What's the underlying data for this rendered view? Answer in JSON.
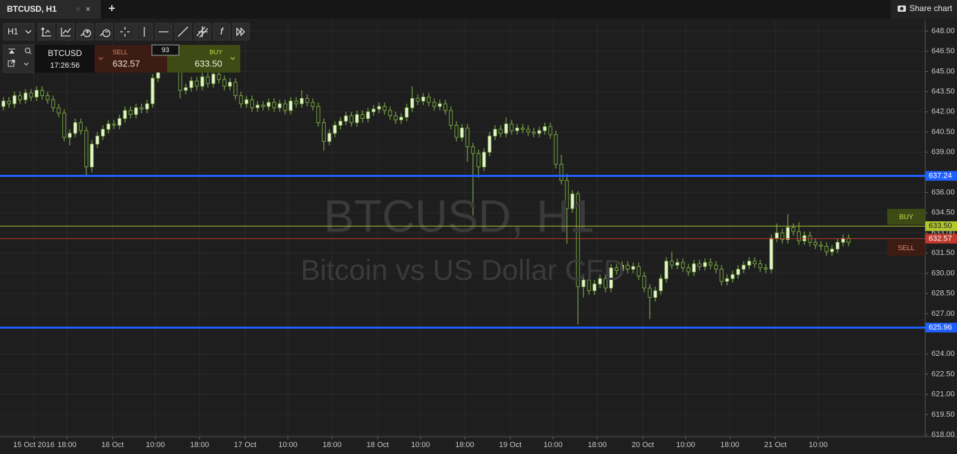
{
  "tab": {
    "share": "Share chart"
  },
  "toolbar": {
    "interval": "H1"
  },
  "quote": {
    "symbol": "BTCUSD",
    "time": "17:26:56",
    "spread": 93
  },
  "chart_data": {
    "type": "candlestick",
    "title": "BTCUSD, H1",
    "subtitle": "Bitcoin vs US Dollar CFD",
    "up_color": "#e8f3d8",
    "down_color": "#1e1e1e",
    "wick_color": "#8bc34a",
    "grid": true,
    "xlim": [
      -0.625,
      166.875
    ],
    "ylim": [
      617.85,
      648.77
    ],
    "xticks": [
      {
        "value": 5.5,
        "label": "15 Oct 2016"
      },
      {
        "value": 11.5,
        "label": "18:00"
      },
      {
        "value": 19.75,
        "label": "16 Oct"
      },
      {
        "value": 27.5,
        "label": "10:00"
      },
      {
        "value": 35.5,
        "label": "18:00"
      },
      {
        "value": 43.75,
        "label": "17 Oct"
      },
      {
        "value": 51.5,
        "label": "10:00"
      },
      {
        "value": 59.5,
        "label": "18:00"
      },
      {
        "value": 67.75,
        "label": "18 Oct"
      },
      {
        "value": 75.5,
        "label": "10:00"
      },
      {
        "value": 83.5,
        "label": "18:00"
      },
      {
        "value": 91.75,
        "label": "19 Oct"
      },
      {
        "value": 99.5,
        "label": "10:00"
      },
      {
        "value": 107.5,
        "label": "18:00"
      },
      {
        "value": 115.75,
        "label": "20 Oct"
      },
      {
        "value": 123.5,
        "label": "10:00"
      },
      {
        "value": 131.5,
        "label": "18:00"
      },
      {
        "value": 139.75,
        "label": "21 Oct"
      },
      {
        "value": 147.5,
        "label": "10:00"
      }
    ],
    "yticks": [
      {
        "value": 618,
        "label": "618.00"
      },
      {
        "value": 619.5,
        "label": "619.50"
      },
      {
        "value": 621,
        "label": "621.00"
      },
      {
        "value": 622.5,
        "label": "622.50"
      },
      {
        "value": 624,
        "label": "624.00"
      },
      {
        "value": 627,
        "label": "627.00"
      },
      {
        "value": 628.5,
        "label": "628.50"
      },
      {
        "value": 630,
        "label": "630.00"
      },
      {
        "value": 631.5,
        "label": "631.50"
      },
      {
        "value": 633,
        "label": "633.00"
      },
      {
        "value": 634.5,
        "label": "634.50"
      },
      {
        "value": 636,
        "label": "636.00"
      },
      {
        "value": 639,
        "label": "639.00"
      },
      {
        "value": 640.5,
        "label": "640.50"
      },
      {
        "value": 642,
        "label": "642.00"
      },
      {
        "value": 643.5,
        "label": "643.50"
      },
      {
        "value": 645,
        "label": "645.00"
      },
      {
        "value": 646.5,
        "label": "646.50"
      },
      {
        "value": 648,
        "label": "648.00"
      }
    ],
    "levels": [
      {
        "value": 637.24,
        "label": "637.24",
        "color": "#1f5fff"
      },
      {
        "value": 625.96,
        "label": "625.96",
        "color": "#1f5fff"
      }
    ],
    "bid": {
      "name": "SELL",
      "value": 632.57,
      "label": "632.57",
      "color": "#c0392b"
    },
    "ask": {
      "name": "BUY",
      "value": 633.5,
      "label": "633.50",
      "color": "#b3c72f"
    },
    "ohlc": [
      [
        642.4,
        643.1,
        642.1,
        642.8
      ],
      [
        642.8,
        643.1,
        642.3,
        642.6
      ],
      [
        642.6,
        643.5,
        642.3,
        643.2
      ],
      [
        643.2,
        643.5,
        642.6,
        642.9
      ],
      [
        642.9,
        643.7,
        642.6,
        643.4
      ],
      [
        643.4,
        643.7,
        642.8,
        643.1
      ],
      [
        643.1,
        643.9,
        642.8,
        643.6
      ],
      [
        643.6,
        643.9,
        642.9,
        643.2
      ],
      [
        643.2,
        643.5,
        642.6,
        642.9
      ],
      [
        642.9,
        643.2,
        642.0,
        642.3
      ],
      [
        642.3,
        642.6,
        641.6,
        641.9
      ],
      [
        641.9,
        642.2,
        639.8,
        640.1
      ],
      [
        640.1,
        640.7,
        639.5,
        640.4
      ],
      [
        640.4,
        641.5,
        640.1,
        641.2
      ],
      [
        641.2,
        641.5,
        640.3,
        640.6
      ],
      [
        640.6,
        640.9,
        637.3,
        637.9
      ],
      [
        637.9,
        639.9,
        637.5,
        639.6
      ],
      [
        639.6,
        640.5,
        639.3,
        640.2
      ],
      [
        640.2,
        641.0,
        639.9,
        640.7
      ],
      [
        640.7,
        641.4,
        640.4,
        641.1
      ],
      [
        641.1,
        641.4,
        640.7,
        641.0
      ],
      [
        641.0,
        641.8,
        640.7,
        641.5
      ],
      [
        641.5,
        642.4,
        641.2,
        642.1
      ],
      [
        642.1,
        642.4,
        641.5,
        641.8
      ],
      [
        641.8,
        642.6,
        641.5,
        642.3
      ],
      [
        642.3,
        642.6,
        641.9,
        642.2
      ],
      [
        642.2,
        642.9,
        641.9,
        642.6
      ],
      [
        642.6,
        644.8,
        642.3,
        644.5
      ],
      [
        644.5,
        645.5,
        644.2,
        645.2
      ],
      [
        645.2,
        646.0,
        644.9,
        645.7
      ],
      [
        645.7,
        646.0,
        645.1,
        645.4
      ],
      [
        645.4,
        646.3,
        645.1,
        646.0
      ],
      [
        646.0,
        646.3,
        643.0,
        643.6
      ],
      [
        643.6,
        644.1,
        643.3,
        643.8
      ],
      [
        643.8,
        644.6,
        643.5,
        644.3
      ],
      [
        644.3,
        644.6,
        643.6,
        643.9
      ],
      [
        643.9,
        644.9,
        643.6,
        644.6
      ],
      [
        644.6,
        644.9,
        643.8,
        644.1
      ],
      [
        644.1,
        645.1,
        643.8,
        644.8
      ],
      [
        644.8,
        645.1,
        644.1,
        644.4
      ],
      [
        644.4,
        644.7,
        643.6,
        643.9
      ],
      [
        643.9,
        644.5,
        643.6,
        644.2
      ],
      [
        644.2,
        644.5,
        642.9,
        643.2
      ],
      [
        643.2,
        643.5,
        642.3,
        642.6
      ],
      [
        642.6,
        643.2,
        642.3,
        642.9
      ],
      [
        642.9,
        643.2,
        642.0,
        642.3
      ],
      [
        642.3,
        642.8,
        642.0,
        642.5
      ],
      [
        642.5,
        642.8,
        642.1,
        642.4
      ],
      [
        642.4,
        643.0,
        642.1,
        642.7
      ],
      [
        642.7,
        643.0,
        642.0,
        642.3
      ],
      [
        642.3,
        642.9,
        642.0,
        642.6
      ],
      [
        642.6,
        642.9,
        641.8,
        642.1
      ],
      [
        642.1,
        643.1,
        641.8,
        642.8
      ],
      [
        642.8,
        643.1,
        642.3,
        642.6
      ],
      [
        642.6,
        643.6,
        642.3,
        643.0
      ],
      [
        643.0,
        643.3,
        642.4,
        642.7
      ],
      [
        642.7,
        643.0,
        642.1,
        642.4
      ],
      [
        642.4,
        642.7,
        640.9,
        641.2
      ],
      [
        641.2,
        641.5,
        639.1,
        639.8
      ],
      [
        639.8,
        640.7,
        639.5,
        640.4
      ],
      [
        640.4,
        641.3,
        640.1,
        641.0
      ],
      [
        641.0,
        641.6,
        640.7,
        641.3
      ],
      [
        641.3,
        642.0,
        641.0,
        641.7
      ],
      [
        641.7,
        642.0,
        640.9,
        641.2
      ],
      [
        641.2,
        642.1,
        640.9,
        641.8
      ],
      [
        641.8,
        642.1,
        641.2,
        641.5
      ],
      [
        641.5,
        642.3,
        641.2,
        642.0
      ],
      [
        642.0,
        642.5,
        641.7,
        642.2
      ],
      [
        642.2,
        642.7,
        641.9,
        642.4
      ],
      [
        642.4,
        642.7,
        641.8,
        642.1
      ],
      [
        642.1,
        642.4,
        641.4,
        641.7
      ],
      [
        641.7,
        642.0,
        641.1,
        641.4
      ],
      [
        641.4,
        641.9,
        641.1,
        641.6
      ],
      [
        641.6,
        642.6,
        641.3,
        642.3
      ],
      [
        642.3,
        643.9,
        642.0,
        643.0
      ],
      [
        643.0,
        643.3,
        642.5,
        642.8
      ],
      [
        642.8,
        643.4,
        642.5,
        643.1
      ],
      [
        643.1,
        643.4,
        642.4,
        642.7
      ],
      [
        642.7,
        643.0,
        642.1,
        642.4
      ],
      [
        642.4,
        642.9,
        642.1,
        642.6
      ],
      [
        642.6,
        642.9,
        641.8,
        642.1
      ],
      [
        642.1,
        642.4,
        640.7,
        641.0
      ],
      [
        641.0,
        641.3,
        639.8,
        640.1
      ],
      [
        640.1,
        641.1,
        639.8,
        640.8
      ],
      [
        640.8,
        641.1,
        638.3,
        639.4
      ],
      [
        639.4,
        639.7,
        634.3,
        638.9
      ],
      [
        638.9,
        639.2,
        637.1,
        637.9
      ],
      [
        637.9,
        639.3,
        637.6,
        639.0
      ],
      [
        639.0,
        640.5,
        638.7,
        640.2
      ],
      [
        640.2,
        641.0,
        639.9,
        640.7
      ],
      [
        640.7,
        641.0,
        640.1,
        640.4
      ],
      [
        640.4,
        641.6,
        640.1,
        641.1
      ],
      [
        641.1,
        641.4,
        640.3,
        640.6
      ],
      [
        640.6,
        641.1,
        640.3,
        640.8
      ],
      [
        640.8,
        641.1,
        640.4,
        640.7
      ],
      [
        640.7,
        641.0,
        640.2,
        640.5
      ],
      [
        640.5,
        640.8,
        640.1,
        640.4
      ],
      [
        640.4,
        640.9,
        640.1,
        640.6
      ],
      [
        640.6,
        641.2,
        640.3,
        640.9
      ],
      [
        640.9,
        641.2,
        640.0,
        640.3
      ],
      [
        640.3,
        640.6,
        637.8,
        638.1
      ],
      [
        638.1,
        638.8,
        636.6,
        636.9
      ],
      [
        636.9,
        637.4,
        632.2,
        634.8
      ],
      [
        634.8,
        636.2,
        634.5,
        635.9
      ],
      [
        635.9,
        636.1,
        626.2,
        629.0
      ],
      [
        629.0,
        629.8,
        628.2,
        629.5
      ],
      [
        629.5,
        629.8,
        628.4,
        628.7
      ],
      [
        628.7,
        629.5,
        628.4,
        629.2
      ],
      [
        629.2,
        629.9,
        628.9,
        629.6
      ],
      [
        629.6,
        629.9,
        628.6,
        628.9
      ],
      [
        628.9,
        630.7,
        628.6,
        630.4
      ],
      [
        630.4,
        630.7,
        629.9,
        630.2
      ],
      [
        630.2,
        630.9,
        629.9,
        630.6
      ],
      [
        630.6,
        630.9,
        630.0,
        630.3
      ],
      [
        630.3,
        630.8,
        630.0,
        630.5
      ],
      [
        630.5,
        630.8,
        629.5,
        629.8
      ],
      [
        629.8,
        630.1,
        628.6,
        628.9
      ],
      [
        628.9,
        629.2,
        626.6,
        628.2
      ],
      [
        628.2,
        629.0,
        627.9,
        628.7
      ],
      [
        628.7,
        629.9,
        628.4,
        629.6
      ],
      [
        629.6,
        631.2,
        629.3,
        630.9
      ],
      [
        630.9,
        631.6,
        630.3,
        630.6
      ],
      [
        630.6,
        631.1,
        630.3,
        630.8
      ],
      [
        630.8,
        631.1,
        630.1,
        630.4
      ],
      [
        630.4,
        630.7,
        629.8,
        630.1
      ],
      [
        630.1,
        631.0,
        629.8,
        630.7
      ],
      [
        630.7,
        631.0,
        630.2,
        630.5
      ],
      [
        630.5,
        631.1,
        630.2,
        630.8
      ],
      [
        630.8,
        631.1,
        630.3,
        630.6
      ],
      [
        630.6,
        630.9,
        630.0,
        630.3
      ],
      [
        630.3,
        630.6,
        629.1,
        629.4
      ],
      [
        629.4,
        629.9,
        629.1,
        629.6
      ],
      [
        629.6,
        630.2,
        629.3,
        629.9
      ],
      [
        629.9,
        630.6,
        629.6,
        630.3
      ],
      [
        630.3,
        630.9,
        630.0,
        630.6
      ],
      [
        630.6,
        631.2,
        630.3,
        630.9
      ],
      [
        630.9,
        631.2,
        630.4,
        630.7
      ],
      [
        630.7,
        631.0,
        630.1,
        630.4
      ],
      [
        630.4,
        630.7,
        630.0,
        630.3
      ],
      [
        630.3,
        632.9,
        630.0,
        632.6
      ],
      [
        632.6,
        633.7,
        632.3,
        633.0
      ],
      [
        633.0,
        633.3,
        632.2,
        632.5
      ],
      [
        632.5,
        634.4,
        632.2,
        633.4
      ],
      [
        633.4,
        633.7,
        632.8,
        633.1
      ],
      [
        633.1,
        633.8,
        632.1,
        632.4
      ],
      [
        632.4,
        633.1,
        632.1,
        632.8
      ],
      [
        632.8,
        633.1,
        632.0,
        632.3
      ],
      [
        632.3,
        632.6,
        631.8,
        632.1
      ],
      [
        632.1,
        632.4,
        631.7,
        632.0
      ],
      [
        632.0,
        632.3,
        631.3,
        631.6
      ],
      [
        631.6,
        632.1,
        631.3,
        631.8
      ],
      [
        631.8,
        632.6,
        631.5,
        632.3
      ],
      [
        632.3,
        632.9,
        632.0,
        632.6
      ],
      [
        632.6,
        632.9,
        632.0,
        632.3
      ]
    ]
  }
}
